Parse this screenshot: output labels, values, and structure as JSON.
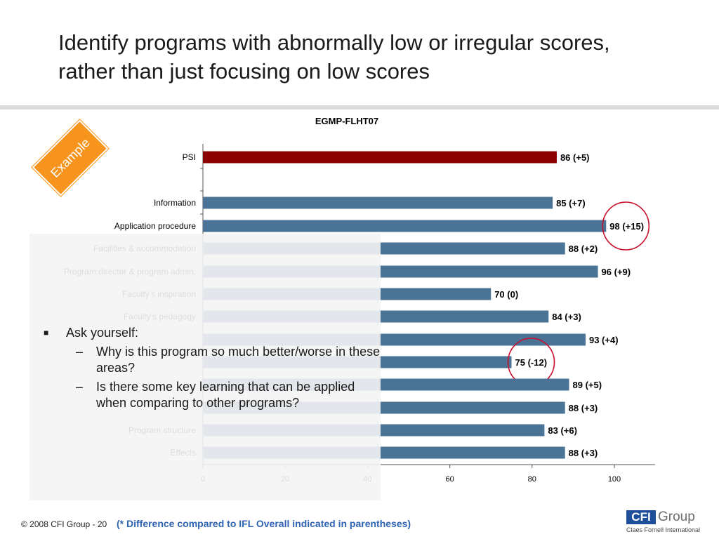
{
  "slide": {
    "title_line1": "Identify programs with abnormally low or irregular scores,",
    "title_line2": "rather than just focusing on low scores",
    "badge": "Example",
    "bullet": "Ask yourself:",
    "sub_bullets": [
      "Why is this program so much better/worse in these areas?",
      "Is there some key learning that can be applied when comparing to other programs?"
    ],
    "footer_copyright": "© 2008 CFI Group - 20",
    "footer_note": "(* Difference compared to IFL Overall indicated in parentheses)",
    "logo_box": "CFI",
    "logo_word": "Group",
    "logo_sub": "Claes Fornell International"
  },
  "colors": {
    "psi_bar": "#8b0000",
    "bar": "#4a7396",
    "highlight_circle": "#c8102e",
    "badge": "#f7941d",
    "footer_note": "#2f63b3"
  },
  "chart_data": {
    "type": "bar",
    "orientation": "horizontal",
    "title": "EGMP-FLHT07",
    "categories": [
      "PSI",
      "Information",
      "Application procedure",
      "Facilities & accommodation",
      "Program director & program admin.",
      "Faculty's inspiration",
      "Faculty's pedagogy",
      "",
      "",
      "",
      "",
      "Program structure",
      "Effects"
    ],
    "values": [
      86,
      85,
      98,
      88,
      96,
      70,
      84,
      93,
      75,
      89,
      88,
      83,
      88
    ],
    "value_labels": [
      "86 (+5)",
      "85 (+7)",
      "98 (+15)",
      "88 (+2)",
      "96 (+9)",
      "70 (0)",
      "84 (+3)",
      "93 (+4)",
      "75 (-12)",
      "89 (+5)",
      "88 (+3)",
      "83 (+6)",
      "88 (+3)"
    ],
    "highlighted": [
      "98 (+15)",
      "75 (-12)"
    ],
    "xlim": [
      0,
      110
    ],
    "xticks": [
      0,
      20,
      40,
      60,
      80,
      100
    ],
    "grid": false,
    "legend": "none"
  }
}
